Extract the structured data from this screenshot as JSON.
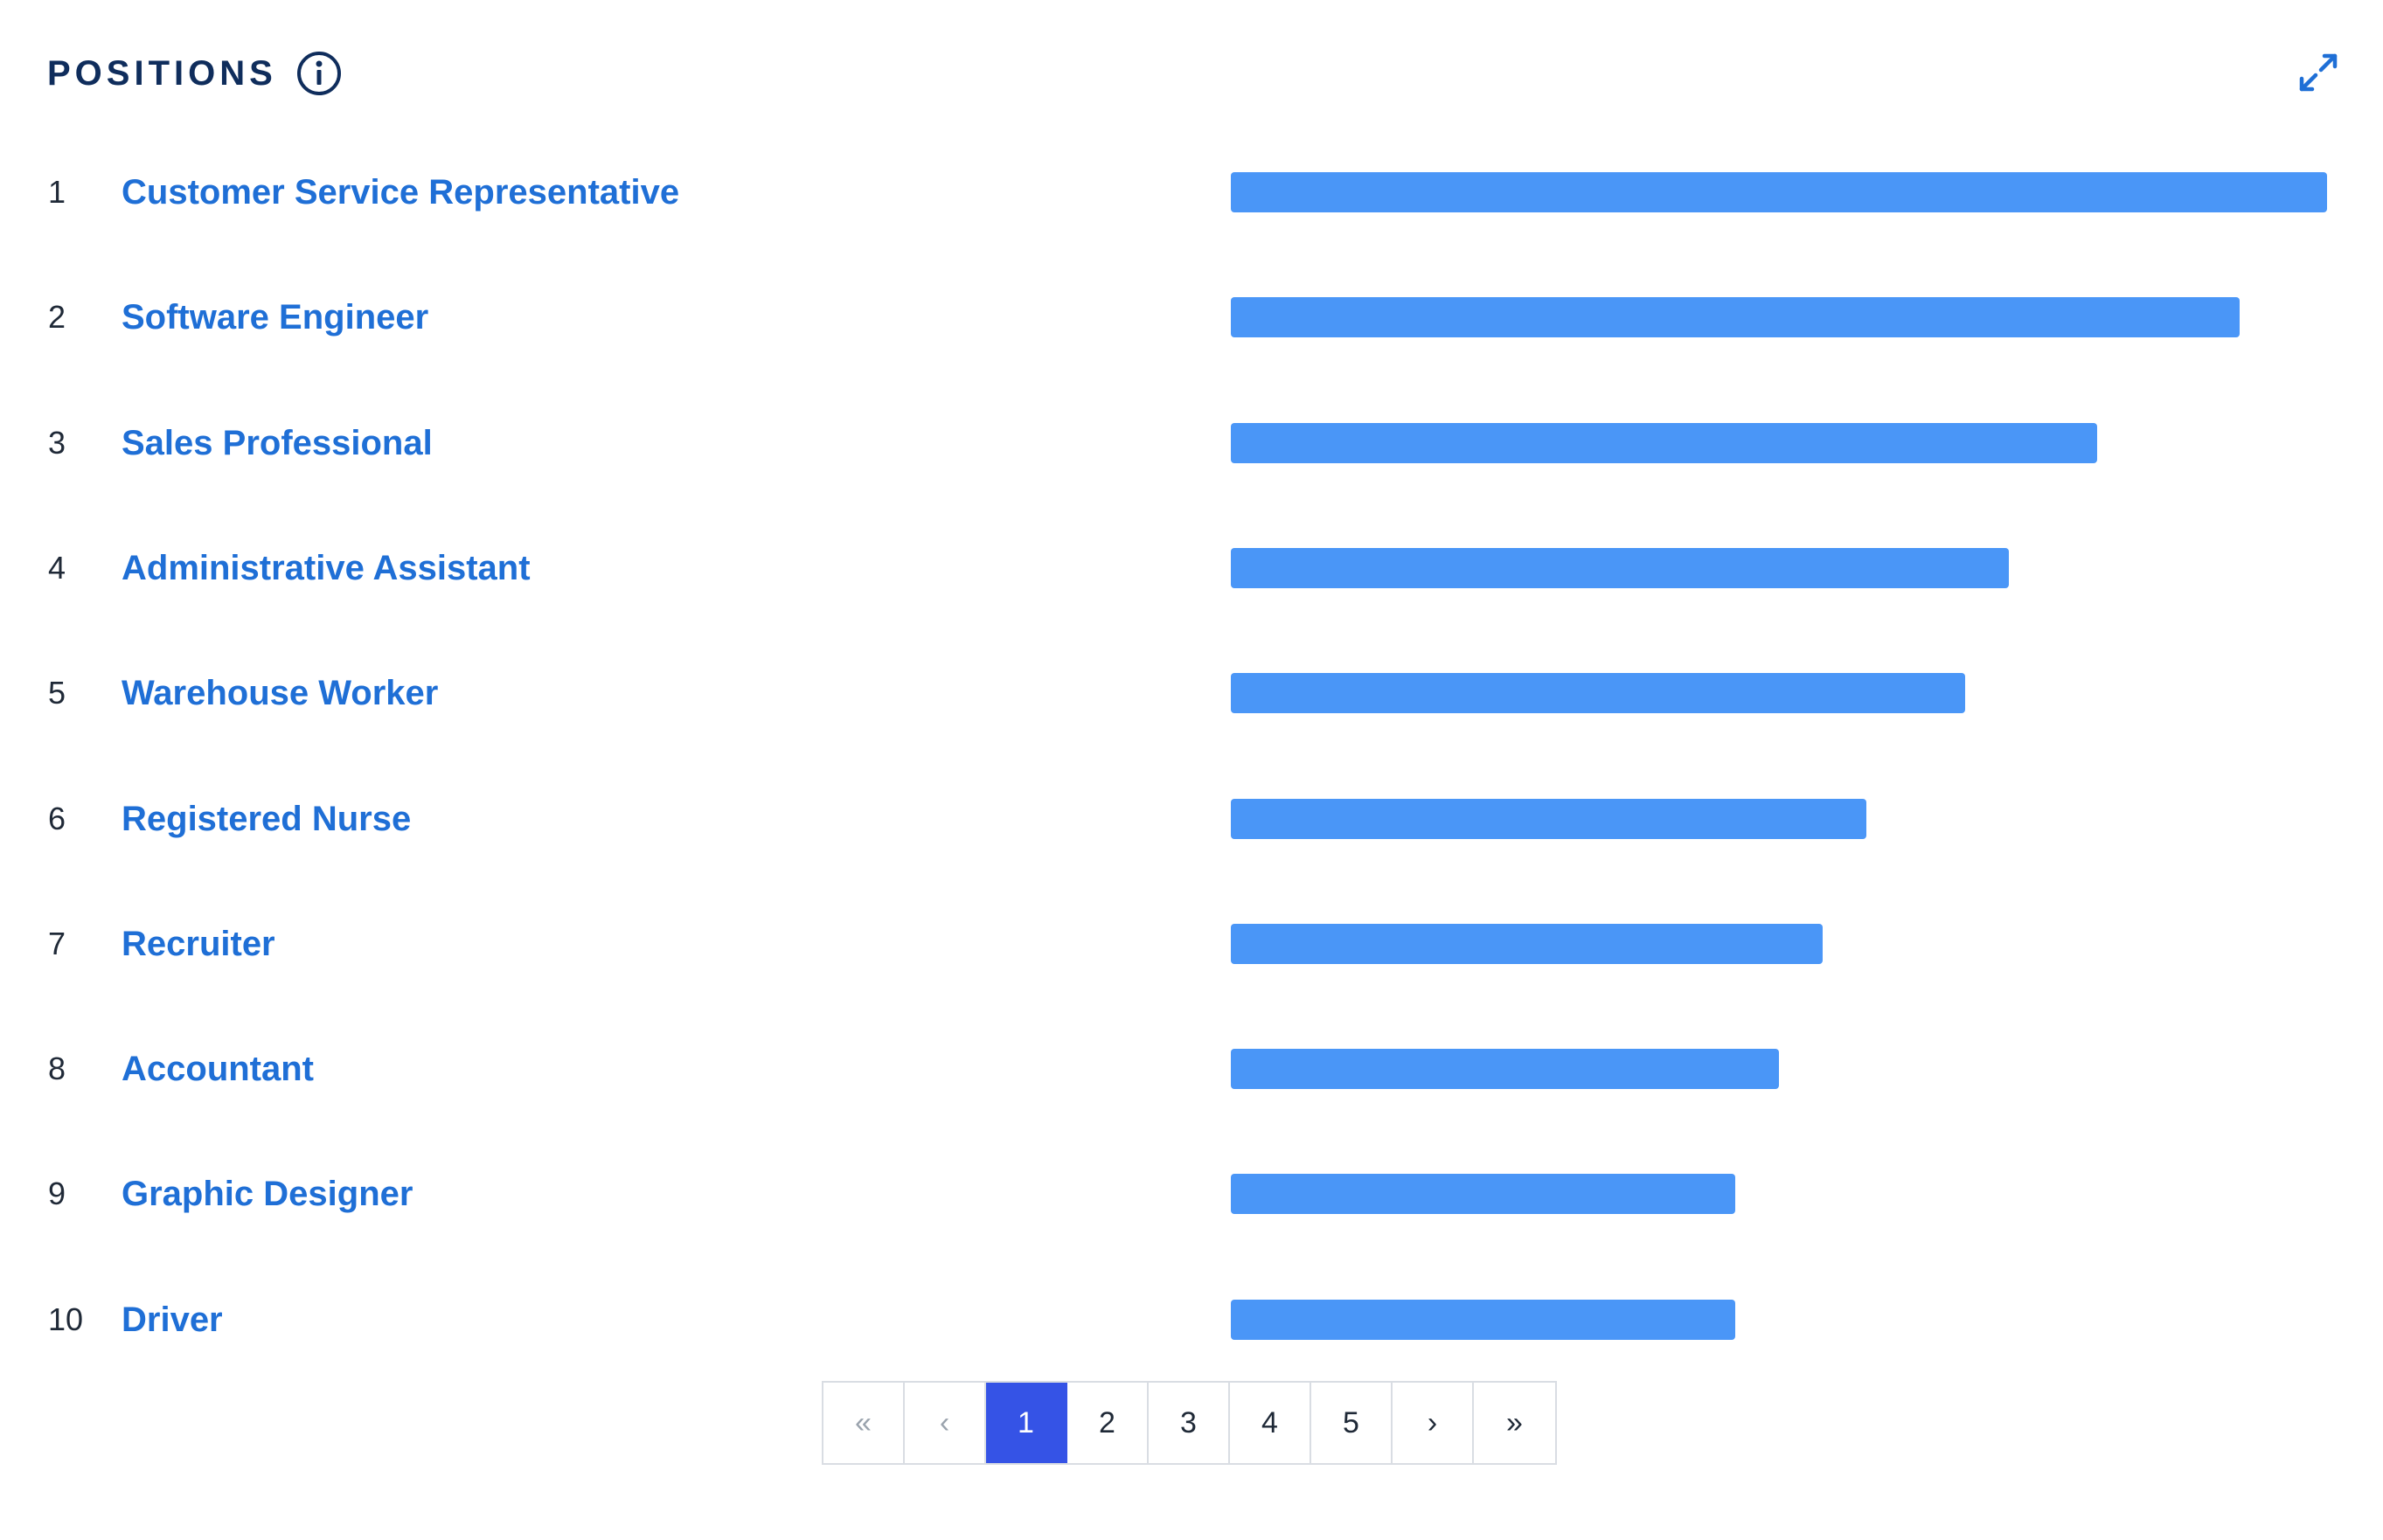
{
  "header": {
    "title": "POSITIONS",
    "info_icon": "info-circle-icon",
    "expand_icon": "expand-arrows-icon"
  },
  "colors": {
    "title": "#0f2d5c",
    "link": "#1f6fd6",
    "bar": "#4a96f7",
    "active_page": "#3553e6"
  },
  "positions": [
    {
      "rank": "1",
      "name": "Customer Service Representative",
      "relative_value": 1.0
    },
    {
      "rank": "2",
      "name": "Software Engineer",
      "relative_value": 0.92
    },
    {
      "rank": "3",
      "name": "Sales Professional",
      "relative_value": 0.79
    },
    {
      "rank": "4",
      "name": "Administrative Assistant",
      "relative_value": 0.71
    },
    {
      "rank": "5",
      "name": "Warehouse Worker",
      "relative_value": 0.67
    },
    {
      "rank": "6",
      "name": "Registered Nurse",
      "relative_value": 0.58
    },
    {
      "rank": "7",
      "name": "Recruiter",
      "relative_value": 0.54
    },
    {
      "rank": "8",
      "name": "Accountant",
      "relative_value": 0.5
    },
    {
      "rank": "9",
      "name": "Graphic Designer",
      "relative_value": 0.46
    },
    {
      "rank": "10",
      "name": "Driver",
      "relative_value": 0.46
    }
  ],
  "pagination": {
    "first": "«",
    "prev": "‹",
    "pages": [
      "1",
      "2",
      "3",
      "4",
      "5"
    ],
    "current": "1",
    "next": "›",
    "last": "»"
  }
}
